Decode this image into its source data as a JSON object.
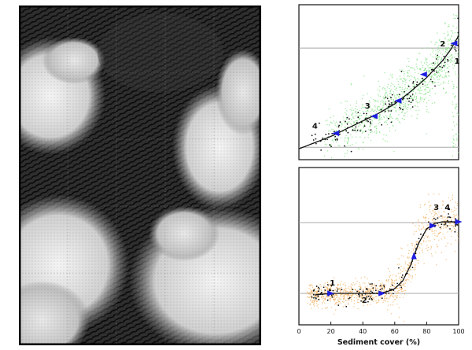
{
  "image_panel": {
    "description_icon": "dune-field-satellite-image"
  },
  "colors": {
    "top_scatter": "#7ee07e",
    "bottom_scatter": "#f0b060",
    "measured_points": "#111111",
    "fit_curve": "#111111",
    "arrow": "#1e1ee0",
    "reference_line": "#a8a8a8"
  },
  "chart_data": [
    {
      "type": "scatter",
      "xlim": [
        0,
        100
      ],
      "ylim": [
        0,
        1
      ],
      "reference_lines_y": [
        0.72,
        0.08
      ],
      "curve": {
        "x": [
          0,
          10,
          20,
          30,
          40,
          50,
          60,
          70,
          80,
          90,
          95,
          100
        ],
        "y": [
          0.07,
          0.11,
          0.15,
          0.2,
          0.25,
          0.3,
          0.36,
          0.44,
          0.53,
          0.64,
          0.71,
          0.8
        ]
      },
      "direction_arrows": [
        {
          "x": 97,
          "y": 0.75,
          "dir": "left"
        },
        {
          "x": 78,
          "y": 0.55,
          "dir": "left"
        },
        {
          "x": 62,
          "y": 0.38,
          "dir": "left"
        },
        {
          "x": 47,
          "y": 0.28,
          "dir": "left"
        },
        {
          "x": 23,
          "y": 0.17,
          "dir": "left"
        }
      ],
      "point_labels": [
        {
          "text": "1",
          "x": 99,
          "y": 0.62
        },
        {
          "text": "2",
          "x": 90,
          "y": 0.73
        },
        {
          "text": "3",
          "x": 43,
          "y": 0.33
        },
        {
          "text": "4",
          "x": 10,
          "y": 0.2
        }
      ],
      "x_tick_labels": [],
      "xlabel": ""
    },
    {
      "type": "scatter",
      "xlim": [
        0,
        100
      ],
      "ylim": [
        0,
        1
      ],
      "reference_lines_y": [
        0.65,
        0.2
      ],
      "curve": {
        "x": [
          10,
          20,
          30,
          40,
          50,
          55,
          60,
          65,
          70,
          75,
          80,
          85,
          90,
          100
        ],
        "y": [
          0.19,
          0.2,
          0.2,
          0.2,
          0.2,
          0.21,
          0.23,
          0.28,
          0.38,
          0.52,
          0.61,
          0.645,
          0.655,
          0.655
        ]
      },
      "direction_arrows": [
        {
          "x": 20,
          "y": 0.2,
          "dir": "right"
        },
        {
          "x": 52,
          "y": 0.2,
          "dir": "right"
        },
        {
          "x": 72,
          "y": 0.44,
          "dir": "up"
        },
        {
          "x": 84,
          "y": 0.63,
          "dir": "right"
        },
        {
          "x": 100,
          "y": 0.655,
          "dir": "right"
        }
      ],
      "point_labels": [
        {
          "text": "1",
          "x": 21,
          "y": 0.25
        },
        {
          "text": "2",
          "x": 41,
          "y": 0.14
        },
        {
          "text": "3",
          "x": 86,
          "y": 0.73
        },
        {
          "text": "4",
          "x": 93,
          "y": 0.73
        }
      ],
      "x_tick_labels": [
        "0",
        "20",
        "40",
        "60",
        "80",
        "100"
      ],
      "x_tick_values": [
        0,
        20,
        40,
        60,
        80,
        100
      ],
      "xlabel": "Sediment cover (%)"
    }
  ]
}
